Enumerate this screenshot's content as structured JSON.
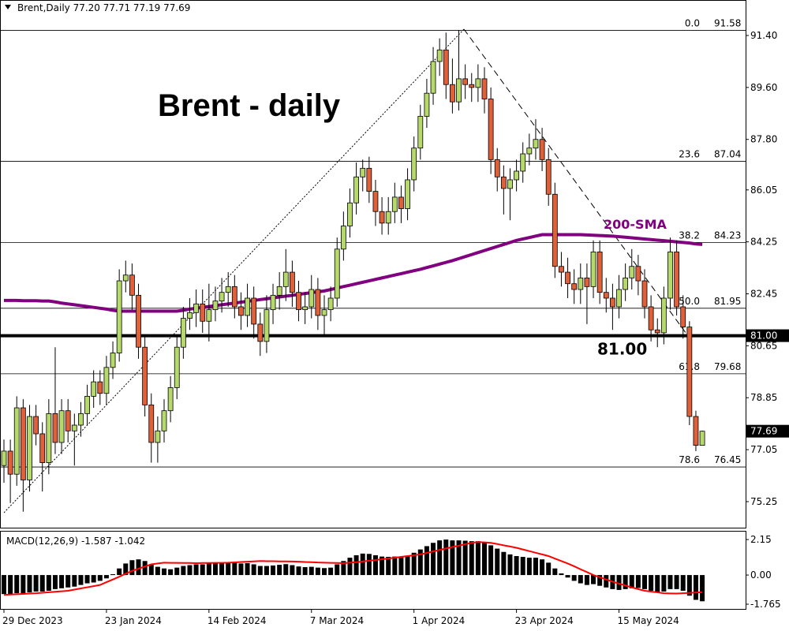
{
  "chart_data": [
    {
      "type": "candlestick",
      "header": "Brent,Daily  77.20 77.71 77.19 77.69",
      "title": "Brent - daily",
      "categories": [
        "29 Dec 2023",
        null,
        null,
        null,
        null,
        null,
        null,
        null,
        null,
        null,
        null,
        null,
        null,
        null,
        null,
        null,
        "23 Jan 2024",
        null,
        null,
        null,
        null,
        null,
        null,
        null,
        null,
        null,
        null,
        null,
        null,
        null,
        null,
        null,
        "14 Feb 2024",
        null,
        null,
        null,
        null,
        null,
        null,
        null,
        null,
        null,
        null,
        null,
        null,
        null,
        null,
        null,
        "7 Mar 2024",
        null,
        null,
        null,
        null,
        null,
        null,
        null,
        null,
        null,
        null,
        null,
        null,
        null,
        null,
        null,
        "1 Apr 2024",
        null,
        null,
        null,
        null,
        null,
        null,
        null,
        null,
        null,
        null,
        null,
        null,
        null,
        null,
        null,
        "23 Apr 2024",
        null,
        null,
        null,
        null,
        null,
        null,
        null,
        null,
        null,
        null,
        null,
        null,
        null,
        null,
        null,
        "15 May 2024",
        null,
        null,
        null,
        null,
        null,
        null,
        null,
        null,
        null,
        null,
        null,
        null,
        null
      ],
      "open": [
        76.5,
        77.0,
        76.2,
        78.5,
        76.0,
        78.2,
        77.6,
        76.6,
        78.3,
        77.3,
        78.4,
        77.7,
        77.9,
        78.3,
        78.9,
        79.4,
        79.0,
        79.9,
        80.4,
        82.9,
        83.1,
        82.4,
        80.6,
        78.6,
        77.3,
        77.7,
        78.4,
        79.2,
        80.6,
        81.6,
        81.8,
        82.1,
        81.5,
        81.9,
        82.2,
        82.5,
        82.7,
        82.0,
        81.7,
        82.3,
        81.4,
        80.8,
        81.9,
        82.4,
        82.7,
        83.2,
        82.5,
        81.9,
        82.0,
        82.6,
        81.7,
        81.9,
        82.3,
        84.0,
        84.8,
        85.6,
        86.5,
        86.8,
        86.0,
        85.3,
        84.9,
        85.3,
        85.8,
        85.4,
        86.4,
        87.5,
        88.6,
        89.4,
        90.5,
        90.9,
        89.7,
        89.1,
        89.9,
        89.7,
        89.6,
        89.9,
        89.2,
        87.1,
        86.5,
        86.1,
        86.4,
        86.7,
        87.3,
        87.5,
        87.8,
        87.1,
        85.9,
        83.4,
        83.2,
        82.8,
        82.6,
        83.0,
        82.7,
        83.9,
        82.5,
        82.3,
        82.0,
        82.6,
        83.0,
        83.4,
        82.9,
        82.0,
        81.2,
        81.1,
        82.3,
        83.9,
        82.0,
        81.3,
        78.2,
        77.2
      ],
      "high": [
        77.4,
        77.4,
        78.9,
        78.8,
        78.6,
        78.6,
        78.0,
        78.8,
        80.6,
        78.8,
        78.8,
        78.3,
        78.7,
        79.3,
        79.8,
        79.8,
        80.3,
        80.8,
        83.3,
        83.6,
        83.5,
        82.8,
        81.0,
        79.0,
        78.2,
        78.8,
        79.6,
        81.0,
        82.0,
        82.3,
        82.6,
        82.6,
        82.8,
        82.7,
        83.0,
        83.2,
        83.1,
        82.5,
        82.8,
        82.7,
        81.8,
        82.4,
        82.8,
        83.2,
        84.0,
        83.6,
        82.9,
        82.5,
        83.1,
        83.0,
        82.4,
        82.7,
        84.4,
        85.3,
        86.1,
        87.0,
        87.1,
        87.2,
        86.4,
        85.8,
        85.8,
        86.3,
        86.2,
        86.8,
        87.9,
        89.0,
        89.9,
        91.0,
        91.3,
        91.5,
        90.6,
        91.58,
        90.4,
        90.1,
        90.4,
        90.3,
        89.6,
        87.5,
        86.9,
        86.8,
        87.1,
        87.7,
        88.0,
        88.5,
        88.2,
        87.5,
        86.3,
        83.9,
        83.7,
        83.3,
        83.5,
        83.5,
        84.3,
        84.3,
        83.0,
        82.8,
        83.1,
        83.5,
        84.0,
        83.8,
        83.3,
        82.4,
        81.6,
        82.7,
        84.4,
        84.3,
        82.4,
        81.5,
        78.4,
        77.71
      ],
      "low": [
        75.9,
        75.2,
        75.8,
        74.9,
        75.6,
        77.2,
        75.6,
        76.2,
        76.9,
        76.9,
        77.3,
        76.5,
        77.5,
        77.9,
        78.5,
        78.6,
        78.6,
        79.5,
        80.1,
        82.5,
        81.9,
        80.2,
        78.2,
        76.6,
        76.6,
        77.3,
        78.0,
        78.8,
        80.2,
        81.2,
        81.3,
        81.1,
        80.8,
        81.5,
        81.8,
        82.0,
        81.6,
        81.2,
        81.3,
        80.9,
        80.3,
        80.4,
        81.4,
        81.9,
        82.2,
        82.0,
        81.5,
        81.4,
        81.6,
        81.2,
        81.0,
        81.5,
        82.0,
        83.6,
        84.4,
        85.2,
        86.0,
        85.6,
        84.8,
        84.5,
        84.5,
        84.9,
        84.9,
        85.0,
        86.0,
        87.1,
        88.2,
        89.0,
        90.0,
        89.2,
        88.7,
        88.8,
        89.2,
        89.1,
        89.1,
        88.7,
        86.6,
        86.0,
        85.2,
        85.0,
        86.0,
        86.3,
        86.9,
        87.1,
        86.7,
        85.5,
        83.0,
        82.7,
        82.3,
        82.1,
        82.1,
        81.4,
        82.3,
        82.1,
        81.8,
        81.2,
        81.6,
        82.2,
        82.6,
        82.4,
        81.6,
        80.8,
        80.6,
        80.7,
        81.9,
        81.7,
        80.9,
        77.9,
        77.0,
        77.19
      ],
      "close": [
        77.0,
        76.2,
        78.5,
        76.0,
        78.2,
        77.6,
        76.6,
        78.3,
        77.3,
        78.4,
        77.7,
        77.9,
        78.3,
        78.9,
        79.4,
        79.0,
        79.9,
        80.4,
        82.9,
        83.1,
        82.4,
        80.6,
        78.6,
        77.3,
        77.7,
        78.4,
        79.2,
        80.6,
        81.6,
        81.8,
        82.1,
        81.5,
        81.9,
        82.2,
        82.5,
        82.7,
        82.0,
        81.7,
        82.3,
        81.4,
        80.8,
        81.9,
        82.4,
        82.7,
        83.2,
        82.5,
        81.9,
        82.0,
        82.6,
        81.7,
        81.9,
        82.3,
        84.0,
        84.8,
        85.6,
        86.5,
        86.8,
        86.0,
        85.3,
        84.9,
        85.3,
        85.8,
        85.4,
        86.4,
        87.5,
        88.6,
        89.4,
        90.5,
        90.9,
        89.7,
        89.1,
        89.9,
        89.7,
        89.6,
        89.9,
        89.2,
        87.1,
        86.5,
        86.1,
        86.4,
        86.7,
        87.3,
        87.5,
        87.8,
        87.1,
        85.9,
        83.4,
        83.2,
        82.8,
        82.6,
        83.0,
        82.7,
        83.9,
        82.5,
        82.3,
        82.0,
        82.6,
        83.0,
        83.4,
        82.9,
        82.0,
        81.2,
        81.1,
        82.3,
        83.9,
        82.0,
        81.3,
        78.2,
        77.2,
        77.69
      ],
      "up_color": "#b5d96b",
      "down_color": "#e0603a",
      "sma": {
        "name": "200-SMA",
        "color": "#800080",
        "values": [
          82.22,
          82.22,
          82.22,
          82.21,
          82.21,
          82.21,
          82.2,
          82.2,
          82.17,
          82.13,
          82.1,
          82.07,
          82.04,
          82.01,
          81.98,
          81.95,
          81.92,
          81.88,
          81.85,
          81.85,
          81.85,
          81.85,
          81.85,
          81.85,
          81.85,
          81.85,
          81.85,
          81.85,
          81.88,
          81.92,
          81.95,
          81.98,
          82.01,
          82.04,
          82.07,
          82.1,
          82.13,
          82.16,
          82.19,
          82.22,
          82.25,
          82.28,
          82.31,
          82.34,
          82.37,
          82.4,
          82.43,
          82.46,
          82.49,
          82.52,
          82.55,
          82.6,
          82.65,
          82.7,
          82.75,
          82.8,
          82.85,
          82.9,
          82.95,
          83.0,
          83.05,
          83.1,
          83.15,
          83.2,
          83.25,
          83.3,
          83.36,
          83.42,
          83.48,
          83.54,
          83.6,
          83.67,
          83.74,
          83.81,
          83.88,
          83.95,
          84.02,
          84.09,
          84.16,
          84.23,
          84.3,
          84.35,
          84.4,
          84.45,
          84.5,
          84.5,
          84.5,
          84.5,
          84.5,
          84.5,
          84.5,
          84.49,
          84.48,
          84.47,
          84.46,
          84.45,
          84.43,
          84.41,
          84.39,
          84.37,
          84.35,
          84.33,
          84.31,
          84.29,
          84.27,
          84.25,
          84.23,
          84.21,
          84.18,
          84.16
        ]
      },
      "fib": {
        "levels": [
          {
            "value": 0,
            "label": "0.0"
          },
          23.6,
          38.2,
          {
            "value": 50,
            "label": "50.0"
          },
          61.8,
          78.6
        ],
        "prices": [
          91.58,
          87.04,
          84.23,
          81.95,
          79.68,
          76.45
        ]
      },
      "support": {
        "value": 81,
        "label": "81.00"
      },
      "ylim": [
        74.32,
        92.63
      ],
      "yticks": [
        {
          "value": 91.4,
          "label": "91.40"
        },
        {
          "value": 89.6,
          "label": "89.60"
        },
        {
          "value": 87.8,
          "label": "87.80"
        },
        86.05,
        84.25,
        82.45,
        80.65,
        78.85,
        77.05,
        75.25
      ]
    },
    {
      "type": "macd",
      "header": "MACD(12,26,9) -1.587 -1.042",
      "histogram": {
        "color": "#000000",
        "values": [
          -1.15,
          -1.2,
          -1.1,
          -1.15,
          -1.05,
          -1.0,
          -1.0,
          -0.95,
          -0.85,
          -0.8,
          -0.75,
          -0.7,
          -0.6,
          -0.5,
          -0.45,
          -0.35,
          -0.2,
          0.05,
          0.4,
          0.7,
          0.9,
          0.95,
          0.85,
          0.65,
          0.5,
          0.4,
          0.35,
          0.45,
          0.55,
          0.6,
          0.65,
          0.65,
          0.7,
          0.72,
          0.75,
          0.78,
          0.75,
          0.7,
          0.72,
          0.65,
          0.55,
          0.55,
          0.58,
          0.62,
          0.66,
          0.6,
          0.52,
          0.48,
          0.5,
          0.45,
          0.42,
          0.45,
          0.65,
          0.85,
          1.05,
          1.2,
          1.3,
          1.28,
          1.2,
          1.12,
          1.1,
          1.12,
          1.1,
          1.18,
          1.35,
          1.55,
          1.75,
          1.95,
          2.1,
          2.15,
          2.1,
          2.1,
          2.08,
          2.05,
          2.05,
          2.0,
          1.8,
          1.6,
          1.4,
          1.25,
          1.15,
          1.1,
          1.05,
          1.05,
          0.95,
          0.75,
          0.4,
          0.1,
          -0.15,
          -0.35,
          -0.5,
          -0.6,
          -0.55,
          -0.65,
          -0.75,
          -0.85,
          -0.9,
          -0.85,
          -0.8,
          -0.78,
          -0.85,
          -0.95,
          -1.05,
          -1.0,
          -0.85,
          -0.85,
          -0.95,
          -1.25,
          -1.5,
          -1.587
        ]
      },
      "signal": {
        "color": "#ff0000",
        "values": [
          -1.2,
          -1.18,
          -1.16,
          -1.14,
          -1.12,
          -1.1,
          -1.07,
          -1.04,
          -1.01,
          -0.98,
          -0.95,
          -0.88,
          -0.81,
          -0.74,
          -0.67,
          -0.6,
          -0.43,
          -0.27,
          -0.1,
          0.08,
          0.25,
          0.38,
          0.52,
          0.65,
          0.7,
          0.75,
          0.74,
          0.74,
          0.73,
          0.73,
          0.72,
          0.73,
          0.73,
          0.74,
          0.74,
          0.75,
          0.77,
          0.79,
          0.81,
          0.83,
          0.85,
          0.84,
          0.84,
          0.83,
          0.83,
          0.82,
          0.81,
          0.79,
          0.78,
          0.76,
          0.75,
          0.74,
          0.73,
          0.72,
          0.75,
          0.78,
          0.82,
          0.87,
          0.91,
          0.96,
          1.0,
          1.05,
          1.1,
          1.15,
          1.2,
          1.25,
          1.34,
          1.43,
          1.52,
          1.61,
          1.7,
          1.78,
          1.87,
          1.95,
          2.0,
          1.98,
          1.95,
          1.88,
          1.8,
          1.73,
          1.65,
          1.55,
          1.45,
          1.35,
          1.25,
          1.15,
          1.0,
          0.85,
          0.7,
          0.53,
          0.35,
          0.18,
          0.0,
          -0.13,
          -0.27,
          -0.4,
          -0.52,
          -0.63,
          -0.75,
          -0.85,
          -0.95,
          -1.0,
          -1.05,
          -1.1,
          -1.11,
          -1.12,
          -1.1,
          -1.08,
          -1.06,
          -1.042
        ]
      },
      "ylim": [
        -2.05,
        2.63
      ],
      "yticks": [
        2.15,
        {
          "value": 0,
          "label": "0.00"
        },
        -1.765
      ]
    }
  ]
}
